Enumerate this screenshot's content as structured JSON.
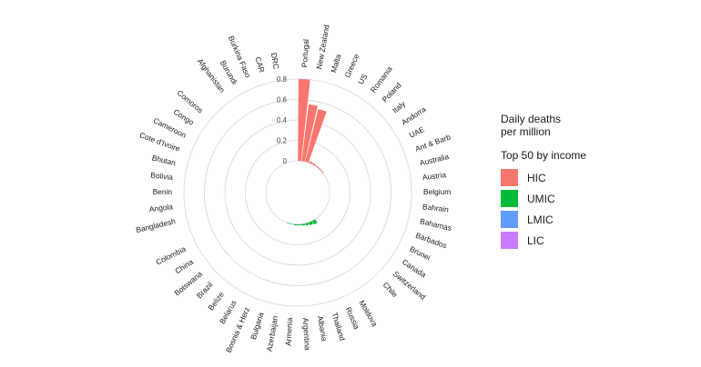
{
  "chart_data": {
    "type": "bar",
    "polar": true,
    "title": "",
    "xlabel": "",
    "ylabel": "",
    "ylim": [
      0,
      0.8
    ],
    "y_ticks": [
      "0",
      "0.2",
      "0.4",
      "0.6",
      "0.8"
    ],
    "grid": true,
    "legend_position": "right",
    "legend_title": "Daily deaths\nper million",
    "legend_subtitle": "Top 50 by income",
    "groups": [
      {
        "name": "HIC",
        "color": "#F8766D"
      },
      {
        "name": "UMIC",
        "color": "#00BA38"
      },
      {
        "name": "LMIC",
        "color": "#619CFF"
      },
      {
        "name": "LIC",
        "color": "#C77CFF"
      }
    ],
    "categories": [
      "Portugal",
      "New Zealand",
      "Malta",
      "Greece",
      "US",
      "Romania",
      "Poland",
      "Italy",
      "Andorra",
      "UAE",
      "Ant & Barb",
      "Australia",
      "Austria",
      "Belgium",
      "Bahrain",
      "Bahamas",
      "Barbados",
      "Brunei",
      "Canada",
      "Switzerland",
      "Chile",
      "",
      "Moldova",
      "Russia",
      "Thailand",
      "Albania",
      "Argentina",
      "Armenia",
      "Azerbaijan",
      "Bulgaria",
      "Bosnia & Herz",
      "Belarus",
      "Belize",
      "Brazil",
      "Botswana",
      "China",
      "Colombia",
      "",
      "Bangladesh",
      "Angola",
      "Benin",
      "Bolivia",
      "Bhutan",
      "Cote d'Ivoire",
      "Cameroon",
      "Congo",
      "Comoros",
      "",
      "Afghanistan",
      "Burundi",
      "Burkina Faso",
      "CAR",
      "DRC",
      ""
    ],
    "series": [
      {
        "name": "Daily deaths per million",
        "group": [
          "HIC",
          "HIC",
          "HIC",
          "HIC",
          "HIC",
          "HIC",
          "HIC",
          "HIC",
          "HIC",
          "HIC",
          "HIC",
          "HIC",
          "HIC",
          "HIC",
          "HIC",
          "HIC",
          "HIC",
          "HIC",
          "HIC",
          "HIC",
          "HIC",
          "",
          "UMIC",
          "UMIC",
          "UMIC",
          "UMIC",
          "UMIC",
          "UMIC",
          "UMIC",
          "UMIC",
          "UMIC",
          "UMIC",
          "UMIC",
          "UMIC",
          "UMIC",
          "UMIC",
          "UMIC",
          "",
          "LMIC",
          "LMIC",
          "LMIC",
          "LMIC",
          "LMIC",
          "LMIC",
          "LMIC",
          "LMIC",
          "LMIC",
          "",
          "LIC",
          "LIC",
          "LIC",
          "LIC",
          "LIC",
          ""
        ],
        "values": [
          0.8,
          0.56,
          0.53,
          0.02,
          0.015,
          0.01,
          0.01,
          0.008,
          0,
          0,
          0,
          0,
          0,
          0,
          0,
          0,
          0,
          0,
          0,
          0,
          0,
          null,
          0.04,
          0.03,
          0.02,
          0.015,
          0.01,
          0.01,
          0.005,
          0.005,
          0,
          0,
          0,
          0,
          0,
          0,
          0,
          null,
          0,
          0,
          0,
          0,
          0,
          0,
          0,
          0,
          0,
          null,
          0,
          0,
          0,
          0,
          0,
          null
        ]
      }
    ]
  }
}
